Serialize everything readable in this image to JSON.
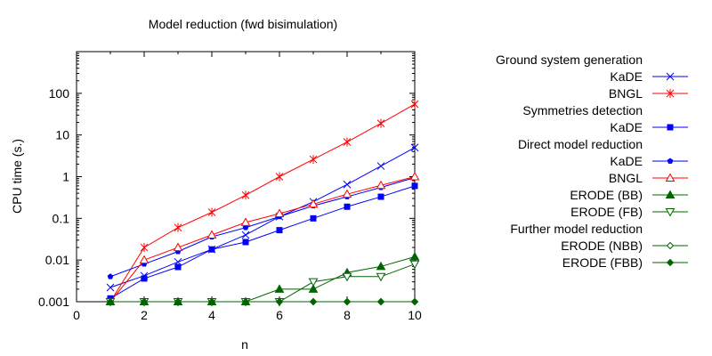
{
  "chart_data": {
    "type": "line",
    "title": "Model reduction (fwd bisimulation)",
    "xlabel": "n",
    "ylabel": "CPU time (s.)",
    "xlim": [
      0,
      10
    ],
    "ylim": [
      0.001,
      1000
    ],
    "yscale": "log",
    "grid": false,
    "legend_position": "right",
    "xticks": [
      "0",
      "2",
      "4",
      "6",
      "8",
      "10"
    ],
    "yticks": [
      "0.001",
      "0.01",
      "0.1",
      "1",
      "10",
      "100"
    ],
    "legend_groups": [
      {
        "heading": "Ground system generation",
        "series": [
          0,
          1
        ]
      },
      {
        "heading": "Symmetries detection",
        "series": [
          2
        ]
      },
      {
        "heading": "Direct model reduction",
        "series": [
          3,
          4,
          5,
          6
        ]
      },
      {
        "heading": "Further model reduction",
        "series": [
          7,
          8
        ]
      }
    ],
    "series": [
      {
        "name": "KaDE",
        "color": "#0000ff",
        "marker": "x",
        "x": [
          1,
          2,
          3,
          4,
          5,
          6,
          7,
          8,
          9,
          10
        ],
        "y": [
          0.0022,
          0.0042,
          0.009,
          0.018,
          0.04,
          0.11,
          0.25,
          0.65,
          1.8,
          5.0
        ]
      },
      {
        "name": "BNGL",
        "color": "#ff0000",
        "marker": "asterisk",
        "x": [
          1,
          2,
          3,
          4,
          5,
          6,
          7,
          8,
          9,
          10
        ],
        "y": [
          0.001,
          0.02,
          0.06,
          0.14,
          0.36,
          1.0,
          2.6,
          6.8,
          19,
          55
        ]
      },
      {
        "name": "KaDE",
        "color": "#0000ff",
        "marker": "filled-square",
        "x": [
          1,
          2,
          3,
          4,
          5,
          6,
          7,
          8,
          9,
          10
        ],
        "y": [
          0.0012,
          0.0036,
          0.0068,
          0.018,
          0.027,
          0.052,
          0.1,
          0.19,
          0.33,
          0.6
        ]
      },
      {
        "name": "KaDE",
        "color": "#0000ff",
        "marker": "filled-pentagon",
        "x": [
          1,
          2,
          3,
          4,
          5,
          6,
          7,
          8,
          9,
          10
        ],
        "y": [
          0.004,
          0.008,
          0.016,
          0.036,
          0.06,
          0.11,
          0.2,
          0.33,
          0.55,
          0.95
        ]
      },
      {
        "name": "BNGL",
        "color": "#ff0000",
        "marker": "open-triangle",
        "x": [
          1,
          2,
          3,
          4,
          5,
          6,
          7,
          8,
          9,
          10
        ],
        "y": [
          0.001,
          0.01,
          0.02,
          0.04,
          0.08,
          0.13,
          0.22,
          0.38,
          0.62,
          1.0
        ]
      },
      {
        "name": "ERODE (BB)",
        "color": "#006400",
        "marker": "filled-triangle",
        "x": [
          1,
          2,
          3,
          4,
          5,
          6,
          7,
          8,
          9,
          10
        ],
        "y": [
          0.001,
          0.001,
          0.001,
          0.001,
          0.001,
          0.002,
          0.002,
          0.005,
          0.007,
          0.012
        ]
      },
      {
        "name": "ERODE (FB)",
        "color": "#006400",
        "marker": "open-triangle-down",
        "x": [
          1,
          2,
          3,
          4,
          5,
          6,
          7,
          8,
          9,
          10
        ],
        "y": [
          0.001,
          0.001,
          0.001,
          0.001,
          0.001,
          0.001,
          0.003,
          0.004,
          0.004,
          0.008
        ]
      },
      {
        "name": "ERODE (NBB)",
        "color": "#006400",
        "marker": "open-diamond",
        "x": [
          1,
          2,
          3,
          4,
          5,
          6,
          7,
          8,
          9,
          10
        ],
        "y": [
          0.001,
          0.001,
          0.001,
          0.001,
          0.001,
          0.001,
          0.001,
          0.001,
          0.001,
          0.001
        ]
      },
      {
        "name": "ERODE (FBB)",
        "color": "#006400",
        "marker": "filled-diamond",
        "x": [
          1,
          2,
          3,
          4,
          5,
          6,
          7,
          8,
          9,
          10
        ],
        "y": [
          0.001,
          0.001,
          0.001,
          0.001,
          0.001,
          0.001,
          0.001,
          0.001,
          0.001,
          0.001
        ]
      }
    ]
  }
}
